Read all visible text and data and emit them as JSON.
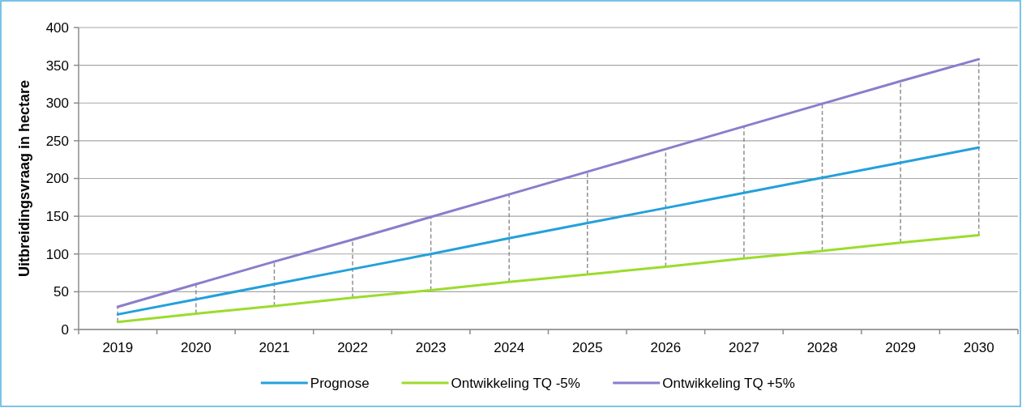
{
  "chart_data": {
    "type": "line",
    "ylabel": "Uitbreidingsvraag in hectare",
    "categories": [
      "2019",
      "2020",
      "2021",
      "2022",
      "2023",
      "2024",
      "2025",
      "2026",
      "2027",
      "2028",
      "2029",
      "2030"
    ],
    "series": [
      {
        "name": "Prognose",
        "color": "#23a0dc",
        "values": [
          20,
          40,
          60,
          80,
          100,
          121,
          141,
          161,
          181,
          201,
          221,
          241
        ],
        "errors": [
          [
            10,
            30
          ],
          [
            21,
            60
          ],
          [
            31,
            90
          ],
          [
            42,
            119
          ],
          [
            52,
            149
          ],
          [
            63,
            179
          ],
          [
            73,
            209
          ],
          [
            83,
            239
          ],
          [
            94,
            269
          ],
          [
            104,
            299
          ],
          [
            115,
            329
          ],
          [
            125,
            358
          ]
        ]
      },
      {
        "name": "Ontwikkeling TQ -5%",
        "color": "#9bdc2c",
        "values": [
          10,
          21,
          31,
          42,
          52,
          63,
          73,
          83,
          94,
          104,
          115,
          125
        ]
      },
      {
        "name": "Ontwikkeling TQ +5%",
        "color": "#8c7ccc",
        "values": [
          30,
          60,
          90,
          119,
          149,
          179,
          209,
          239,
          269,
          299,
          329,
          358
        ]
      }
    ],
    "ylim": [
      0,
      400
    ],
    "yticks": [
      0,
      50,
      100,
      150,
      200,
      250,
      300,
      350,
      400
    ],
    "grid": "y",
    "legend": "bottom"
  }
}
